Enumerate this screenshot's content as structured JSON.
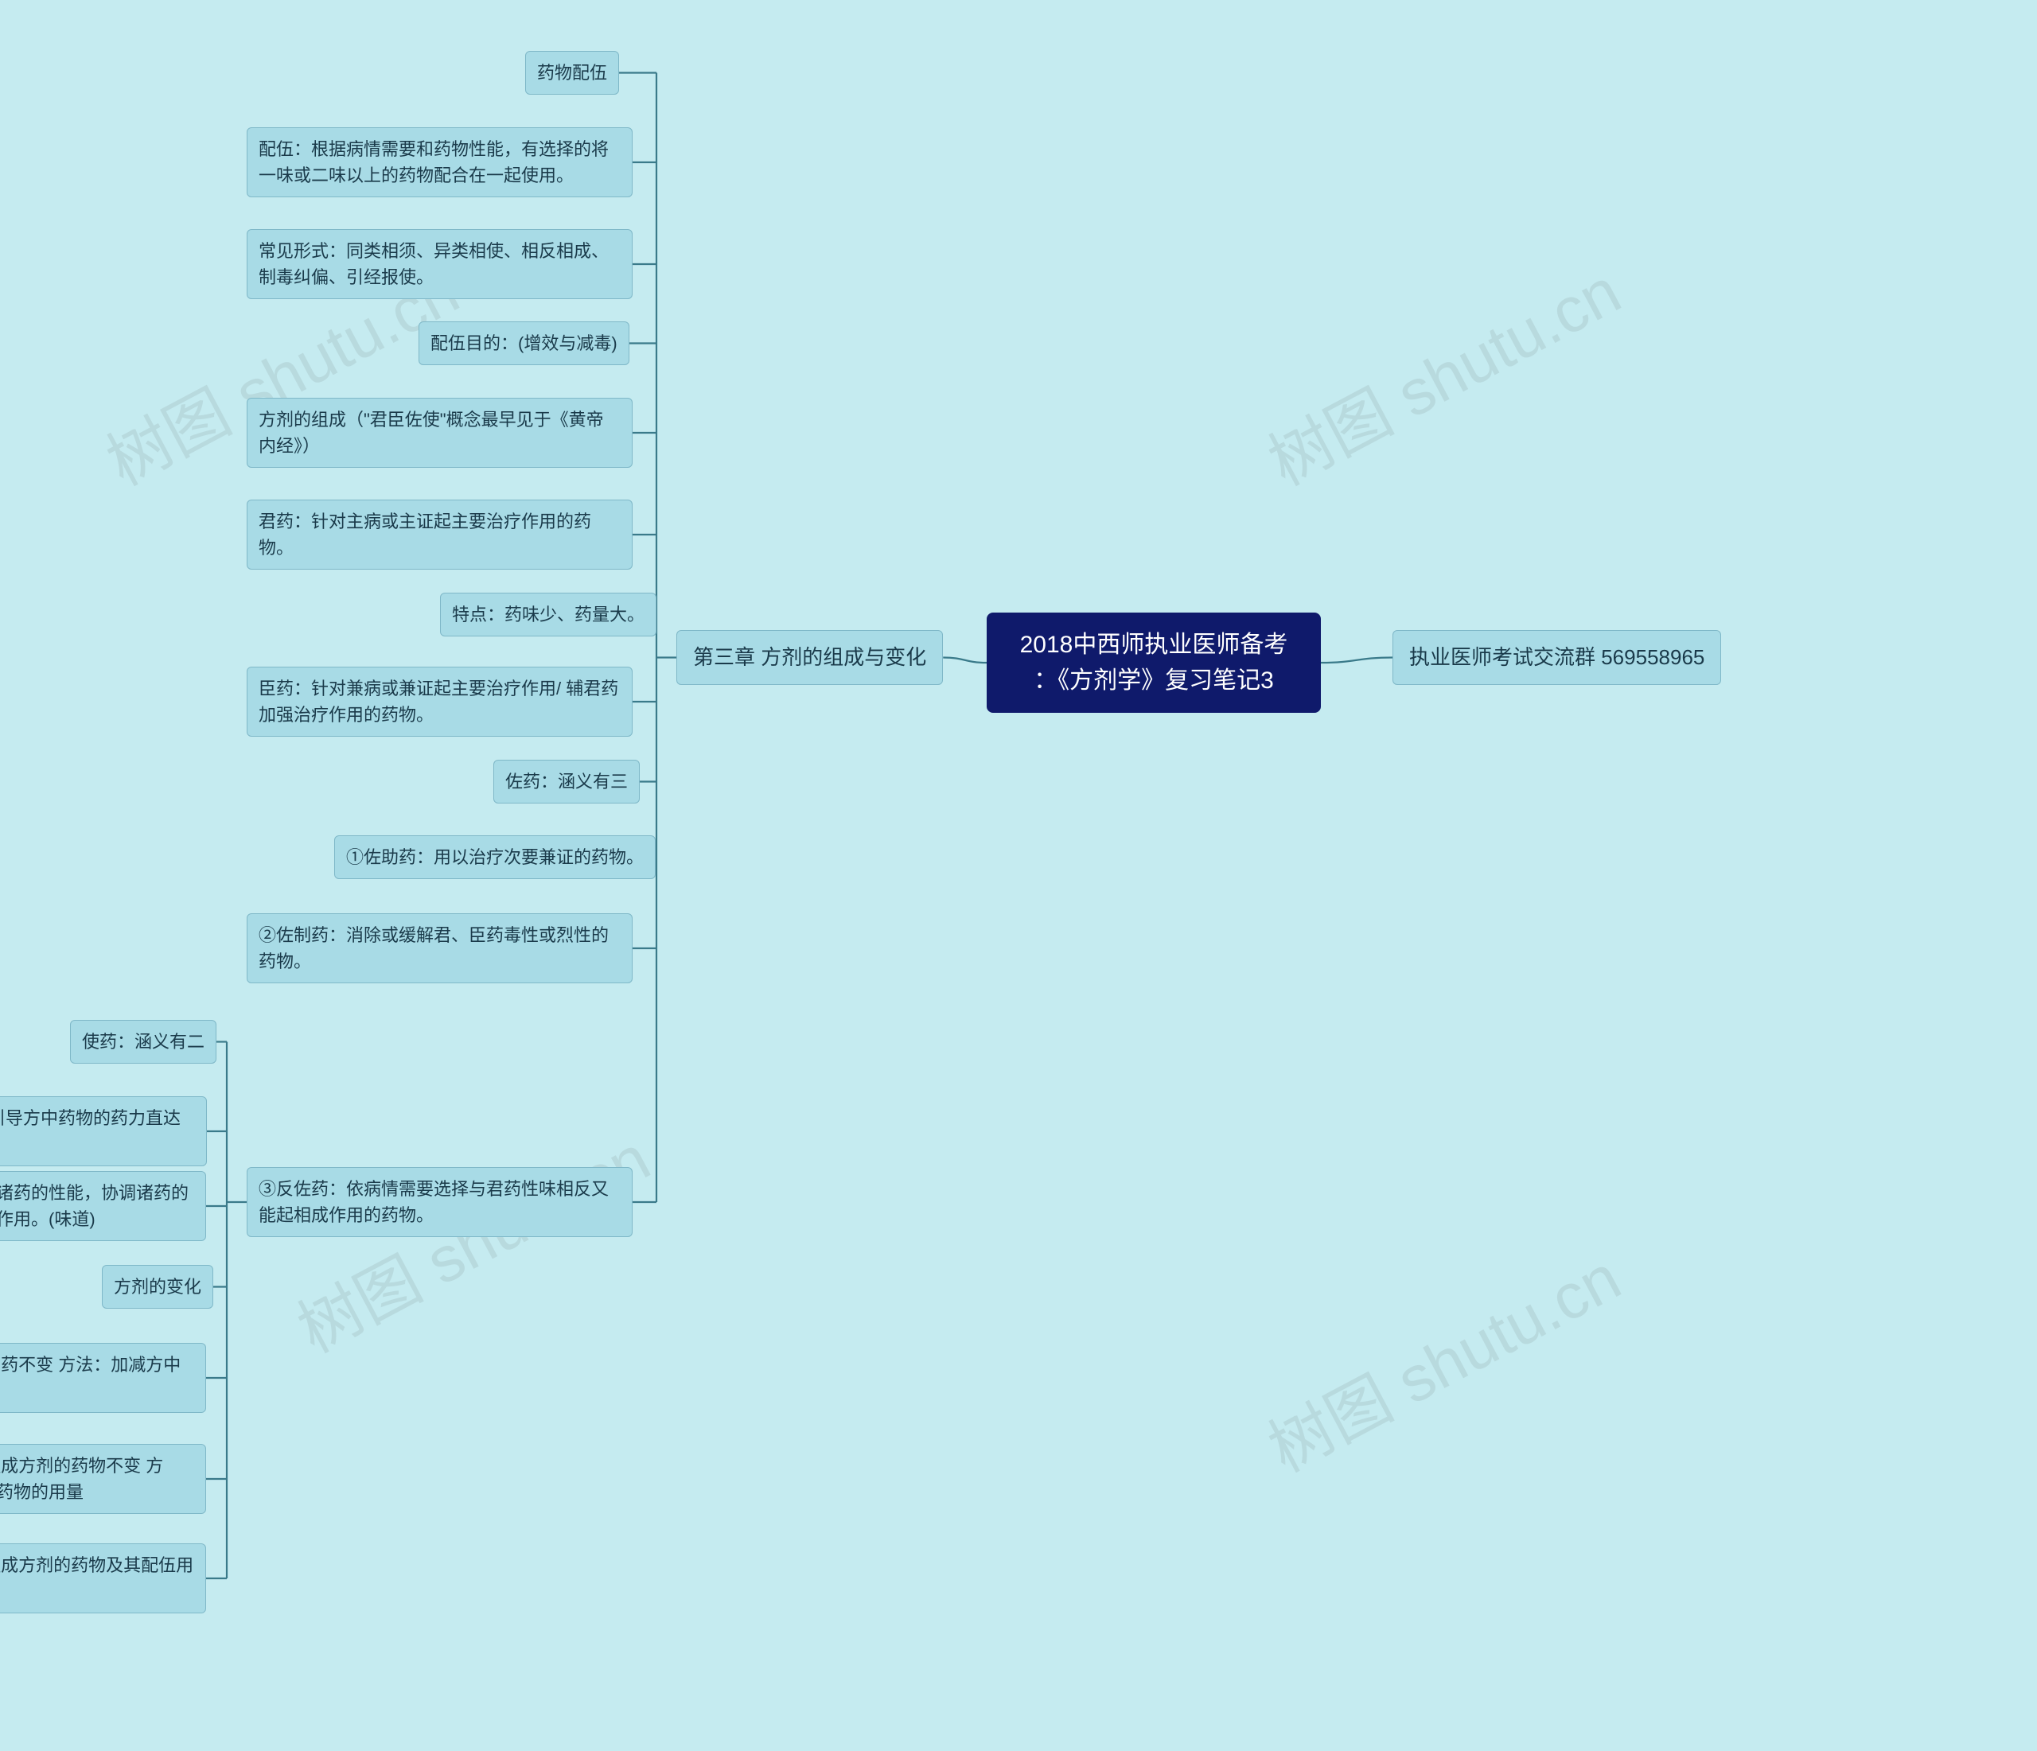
{
  "background_color": "#c5ebf0",
  "node_fill": "#a8dbe6",
  "node_border": "#7fb8c8",
  "root_fill": "#0f1a6b",
  "root_text_color": "#ffffff",
  "connector_color": "#3a7a8a",
  "watermark_text": "树图 shutu.cn",
  "watermark_color": "rgba(80,80,80,0.11)",
  "root": {
    "line1": "2018中西师执业医师备考",
    "line2": "：《方剂学》复习笔记3"
  },
  "right_branch": "执业医师考试交流群 569558965",
  "left_branch": "第三章 方剂的组成与变化",
  "group_a": [
    "药物配伍",
    "配伍：根据病情需要和药物性能，有选择的将一味或二味以上的药物配合在一起使用。",
    "常见形式：同类相须、异类相使、相反相成、制毒纠偏、引经报使。",
    "配伍目的：(增效与减毒)",
    "方剂的组成（\"君臣佐使\"概念最早见于《黄帝内经》）",
    "君药：针对主病或主证起主要治疗作用的药物。",
    "特点：药味少、药量大。",
    "臣药：针对兼病或兼证起主要治疗作用/ 辅君药加强治疗作用的药物。",
    "佐药：涵义有三",
    "①佐助药：用以治疗次要兼证的药物。",
    "②佐制药：消除或缓解君、臣药毒性或烈性的药物。"
  ],
  "bridge_node": "③反佐药：依病情需要选择与君药性味相反又能起相成作用的药物。",
  "group_b": [
    "使药：涵义有二",
    "引经药：能引导方中药物的药力直达病所。",
    "调和药：能调和方中诸药的性能，协调诸药的相互作用或起到矫味作用。(味道)",
    "方剂的变化",
    "药味的增损 前提：君药不变 方法：加减方中药物",
    "药量的加减 前提：组成方剂的药物不变 方法：增加或减少方中药物的用量",
    "剂型的变化 前提：组成方剂的药物及其配伍用量比例不变。"
  ]
}
